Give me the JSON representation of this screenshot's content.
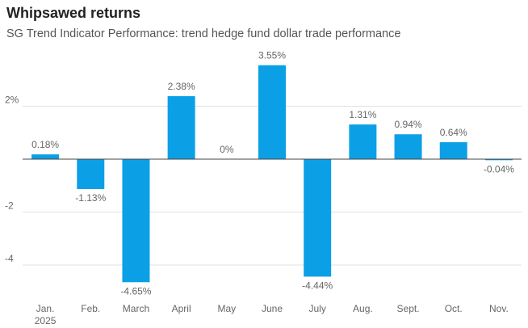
{
  "title": "Whipsawed returns",
  "subtitle": "SG Trend Indicator Performance: trend hedge fund dollar trade performance",
  "chart_data": {
    "type": "bar",
    "categories": [
      "Jan.",
      "Feb.",
      "March",
      "April",
      "May",
      "June",
      "July",
      "Aug.",
      "Sept.",
      "Oct.",
      "Nov."
    ],
    "year_label": "2025",
    "values": [
      0.18,
      -1.13,
      -4.65,
      2.38,
      0,
      3.55,
      -4.44,
      1.31,
      0.94,
      0.64,
      -0.04
    ],
    "data_labels": [
      "0.18%",
      "-1.13%",
      "-4.65%",
      "2.38%",
      "0%",
      "3.55%",
      "-4.44%",
      "1.31%",
      "0.94%",
      "0.64%",
      "-0.04%"
    ],
    "y_ticks": [
      2,
      0,
      -2,
      -4
    ],
    "y_tick_labels": [
      "2%",
      "",
      "-2",
      "-4"
    ],
    "ylim": [
      -5.3,
      3.9
    ],
    "bar_color": "#0ba0e6",
    "grid": true,
    "xlabel": "",
    "ylabel": ""
  }
}
